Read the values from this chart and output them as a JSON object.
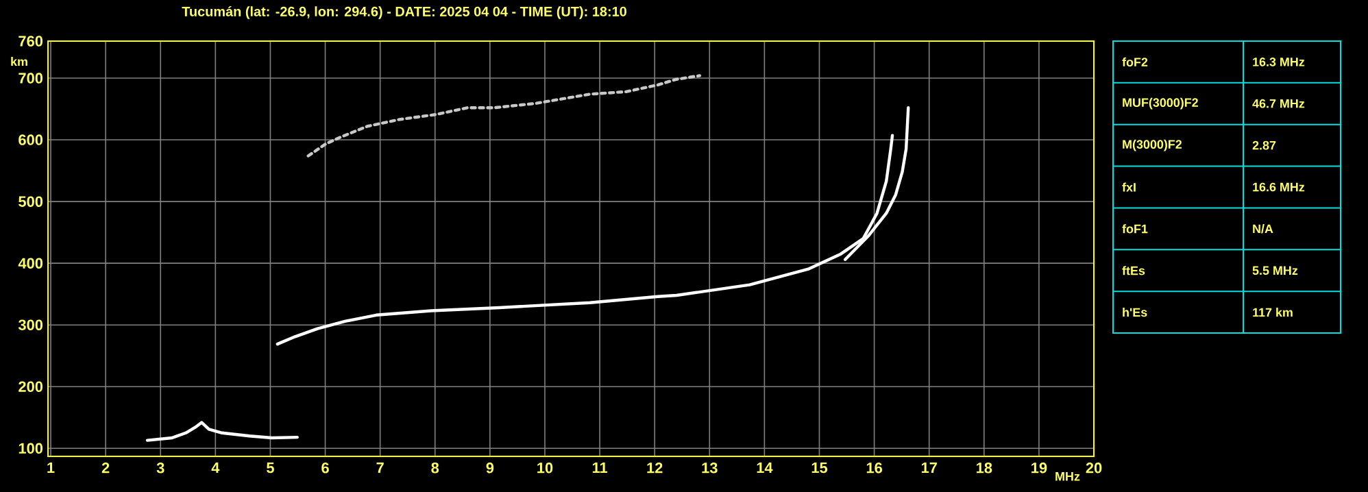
{
  "chart_data": {
    "type": "line",
    "title": "Tucumán (lat: -26.9, lon: 294.6) - DATE: 2025 04 04 - TIME (UT): 18:10",
    "xlabel": "MHz",
    "ylabel": "km",
    "xlim": [
      0.95,
      20
    ],
    "ylim": [
      87,
      760
    ],
    "xticks": [
      1,
      2,
      3,
      4,
      5,
      6,
      7,
      8,
      9,
      10,
      11,
      12,
      13,
      14,
      15,
      16,
      17,
      18,
      19,
      20
    ],
    "yticks": [
      100,
      200,
      300,
      400,
      500,
      600,
      700,
      760
    ],
    "grid": true,
    "marker": "none",
    "series": [
      {
        "color": "#ffffff",
        "x": [
          2.76,
          3.21,
          3.46,
          3.63,
          3.75,
          3.88,
          4.12,
          4.62,
          5.03,
          5.49
        ],
        "values": [
          113,
          117,
          125,
          134,
          142,
          131,
          125,
          120,
          117,
          118
        ]
      },
      {
        "color": "#ffffff",
        "x": [
          5.13,
          5.45,
          5.86,
          6.36,
          6.93,
          7.93,
          9.17,
          10.82,
          12.06,
          12.4,
          13.73,
          14.81,
          15.39,
          15.8,
          16.05,
          16.22,
          16.3,
          16.33
        ],
        "values": [
          269,
          281,
          294,
          306,
          316,
          323,
          328,
          336,
          346,
          348,
          365,
          391,
          415,
          440,
          481,
          533,
          585,
          607
        ]
      },
      {
        "color": "#ffffff",
        "x": [
          15.47,
          15.89,
          16.22,
          16.39,
          16.51,
          16.58,
          16.62
        ],
        "values": [
          406,
          444,
          481,
          511,
          548,
          585,
          652
        ]
      },
      {
        "color": "#c8c8c8",
        "line_style": "dashed",
        "x": [
          5.69,
          6.02,
          6.27,
          6.77,
          7.35,
          8.01,
          8.59,
          9.08,
          9.83,
          10.82,
          11.48,
          12.06,
          12.39,
          12.82
        ],
        "values": [
          574,
          594,
          604,
          622,
          633,
          641,
          652,
          652,
          659,
          674,
          678,
          689,
          698,
          704
        ]
      }
    ],
    "annotations": [
      "foF2",
      "16.3 MHz",
      "MUF(3000)F2",
      "46.7 MHz",
      "M(3000)F2",
      "2.87",
      "fxI",
      "16.6 MHz",
      "foF1",
      "N/A",
      "ftEs",
      "5.5 MHz",
      "h'Es",
      "117 km"
    ]
  }
}
